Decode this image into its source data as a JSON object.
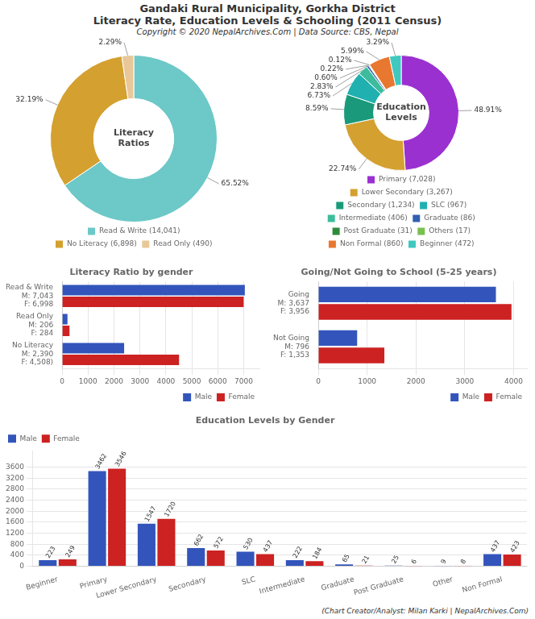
{
  "title": [
    "Gandaki Rural Municipality, Gorkha District",
    "Literacy Rate, Education Levels & Schooling (2011 Census)"
  ],
  "subtitle": "Copyright © 2020 NepalArchives.Com | Data Source: CBS, Nepal",
  "footer": "(Chart Creator/Analyst: Milan Karki | NepalArchives.Com)",
  "chart_data": [
    {
      "type": "pie",
      "categories": [
        "Read & Write (14,041)",
        "No Literacy (6,898)",
        "Read Only (490)"
      ],
      "values": [
        65.52,
        32.19,
        2.29
      ],
      "value_labels": [
        "65.52%",
        "32.19%",
        "2.29%"
      ],
      "colors": [
        "#6dc8c8",
        "#d4a030",
        "#e8c898"
      ],
      "annotations": [
        "Literacy\nRatios"
      ],
      "data_labels": true,
      "legend": "bottom"
    },
    {
      "type": "pie",
      "categories": [
        "Primary (7,028)",
        "Lower Secondary (3,267)",
        "Secondary (1,234)",
        "SLC (967)",
        "Intermediate (406)",
        "Graduate (86)",
        "Post Graduate (31)",
        "Others (17)",
        "Non Formal (860)",
        "Beginner (472)"
      ],
      "values": [
        48.91,
        22.74,
        8.59,
        6.73,
        2.83,
        0.6,
        0.22,
        0.12,
        5.99,
        3.29
      ],
      "value_labels": [
        "48.91%",
        "22.74%",
        "8.59%",
        "6.73%",
        "2.83%",
        "0.60%",
        "0.22%",
        "0.12%",
        "5.99%",
        "3.29%"
      ],
      "colors": [
        "#9b30d0",
        "#d4a030",
        "#1a9a7a",
        "#20b0b0",
        "#3cbc9c",
        "#3060b0",
        "#2d8a3a",
        "#78c050",
        "#e87830",
        "#40c8c0"
      ],
      "annotations": [
        "Education\nLevels"
      ],
      "data_labels": true,
      "legend": "bottom"
    },
    {
      "type": "bar",
      "orientation": "horizontal",
      "title": "Literacy Ratio by gender",
      "categories": [
        "Read & Write\nM: 7,043\nF: 6,998",
        "Read Only\nM: 206\nF: 284",
        "No Literacy\nM: 2,390\nF: 4,508)"
      ],
      "series": [
        {
          "name": "Male",
          "color": "#3355bb",
          "values": [
            7043,
            206,
            2390
          ]
        },
        {
          "name": "Female",
          "color": "#cc2222",
          "values": [
            6998,
            284,
            4508
          ]
        }
      ],
      "xlim": [
        0,
        7606.44
      ],
      "xticks": [
        0,
        1000,
        2000,
        3000,
        4000,
        5000,
        6000,
        7000
      ],
      "grid": true,
      "legend": "lower right"
    },
    {
      "type": "bar",
      "orientation": "horizontal",
      "title": "Going/Not Going to School (5-25 years)",
      "categories": [
        "Going\nM: 3,637\nF: 3,956",
        "Not Going\nM: 796\nF: 1,353"
      ],
      "series": [
        {
          "name": "Male",
          "color": "#3355bb",
          "values": [
            3637,
            796
          ]
        },
        {
          "name": "Female",
          "color": "#cc2222",
          "values": [
            3956,
            1353
          ]
        }
      ],
      "xlim": [
        0,
        4272.48
      ],
      "xticks": [
        0,
        1000,
        2000,
        3000,
        4000
      ],
      "grid": true,
      "legend": "lower right"
    },
    {
      "type": "bar",
      "title": "Education Levels by Gender",
      "categories": [
        "Beginner",
        "Primary",
        "Lower Secondary",
        "Secondary",
        "SLC",
        "Intermediate",
        "Graduate",
        "Post Graduate",
        "Other",
        "Non Formal"
      ],
      "series": [
        {
          "name": "Male",
          "color": "#3355bb",
          "values": [
            223,
            3462,
            1547,
            662,
            530,
            222,
            65,
            25,
            9,
            437
          ]
        },
        {
          "name": "Female",
          "color": "#cc2222",
          "values": [
            249,
            3546,
            1720,
            572,
            437,
            184,
            21,
            6,
            8,
            423
          ]
        }
      ],
      "ylim": [
        0,
        4200
      ],
      "yticks": [
        0,
        400,
        800,
        1200,
        1600,
        2000,
        2400,
        2800,
        3200,
        3600
      ],
      "grid": true,
      "legend": "upper left",
      "data_labels": true
    }
  ]
}
